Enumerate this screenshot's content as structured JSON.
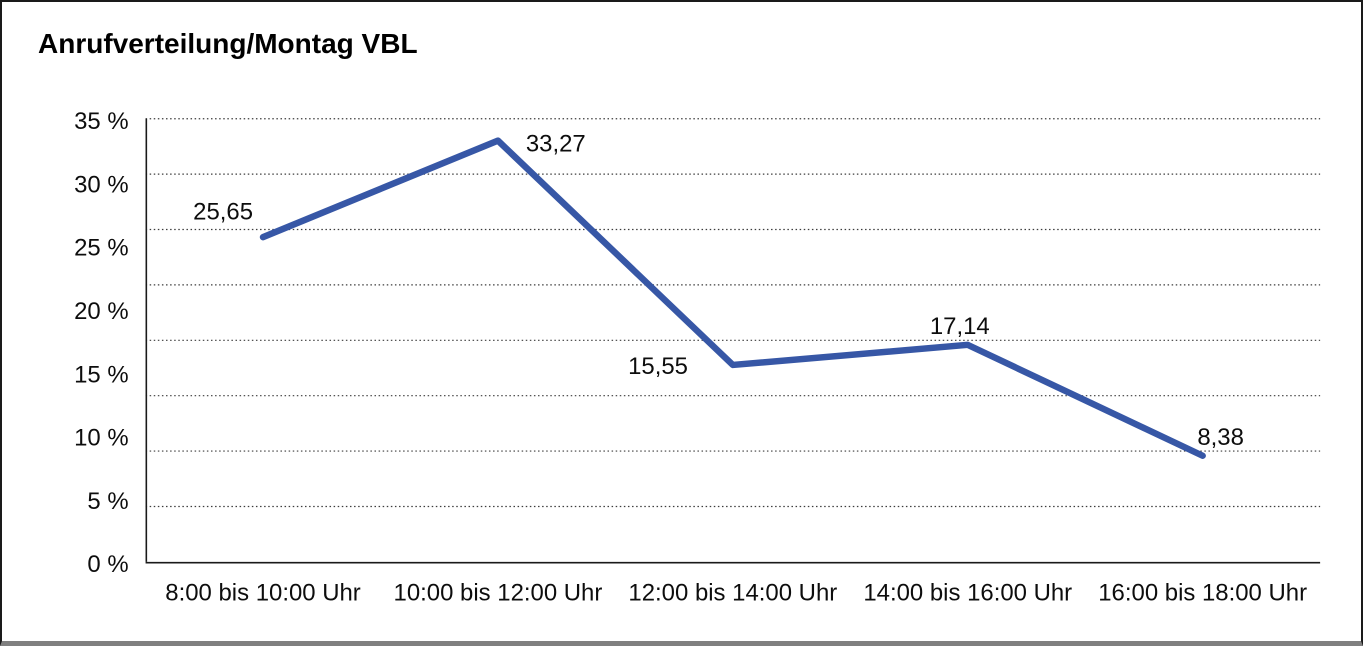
{
  "window": {
    "background_color": "#ffffff",
    "border_color": "#1a1a1a",
    "bottom_border_color": "#808080"
  },
  "chart": {
    "title": "Anrufverteilung/Montag VBL"
  },
  "chart_data": {
    "type": "line",
    "title": "Anrufverteilung/Montag VBL",
    "categories": [
      "8:00 bis 10:00 Uhr",
      "10:00 bis 12:00 Uhr",
      "12:00 bis 14:00 Uhr",
      "14:00 bis 16:00 Uhr",
      "16:00 bis 18:00 Uhr"
    ],
    "series": [
      {
        "values": [
          25.65,
          33.27,
          15.55,
          17.14,
          8.38
        ],
        "value_labels": [
          "25,65",
          "33,27",
          "15,55",
          "17,14",
          "8,38"
        ],
        "color": "#3757A6"
      }
    ],
    "ylim": [
      0,
      35
    ],
    "ytick_step": 5,
    "ytick_labels_top_to_bottom": [
      "35 %",
      "30 %",
      "25 %",
      "20 %",
      "15 %",
      "10 %",
      "5 %",
      "0 %"
    ],
    "grid": "horizontal-dotted",
    "grid_color": "#3c3c3c",
    "axis_color": "#1a1a1a",
    "legend": "none",
    "xlabel": "",
    "ylabel": ""
  }
}
